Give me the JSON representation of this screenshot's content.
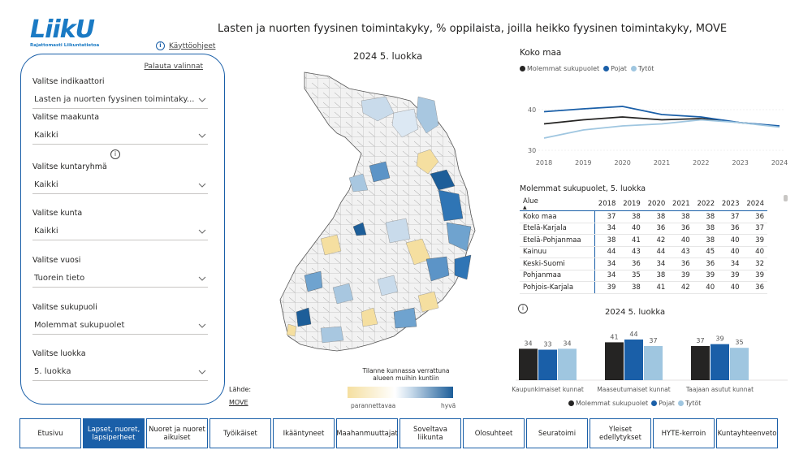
{
  "brand": {
    "logo_text": "LiikU",
    "logo_subtitle": "Rajattomasti Liikuntatietoa",
    "color": "#1a7ac4"
  },
  "page_title": "Lasten ja nuorten fyysinen toimintakyky, % oppilaista, joilla heikko fyysinen toimintakyky, MOVE",
  "help_link": "Käyttöohjeet",
  "filters": {
    "reset_label": "Palauta valinnat",
    "items": [
      {
        "label": "Valitse indikaattori",
        "value": "Lasten ja nuorten fyysinen toimintaky..."
      },
      {
        "label": "Valitse maakunta",
        "value": "Kaikki"
      },
      {
        "label": "Valitse kuntaryhmä",
        "value": "Kaikki"
      },
      {
        "label": "Valitse kunta",
        "value": "Kaikki"
      },
      {
        "label": "Valitse vuosi",
        "value": "Tuorein tieto"
      },
      {
        "label": "Valitse sukupuoli",
        "value": "Molemmat sukupuolet"
      },
      {
        "label": "Valitse luokka",
        "value": "5. luokka"
      }
    ]
  },
  "map": {
    "title": "2024 5. luokka",
    "legend_title": "Tilanne kunnassa verrattuna alueen muihin kuntiin",
    "legend_left": "parannettavaa",
    "legend_right": "hyvä",
    "source_label": "Lähde:",
    "source_link": "MOVE"
  },
  "line_chart": {
    "title": "Koko maa",
    "legend": [
      {
        "name": "Molemmat sukupuolet",
        "color": "#252423"
      },
      {
        "name": "Pojat",
        "color": "#1a5fa8"
      },
      {
        "name": "Tytöt",
        "color": "#9fc6e0"
      }
    ]
  },
  "table": {
    "title": "Molemmat sukupuolet, 5. luokka",
    "columns": [
      "Alue",
      "2018",
      "2019",
      "2020",
      "2021",
      "2022",
      "2023",
      "2024"
    ],
    "rows": [
      [
        "Koko maa",
        "37",
        "38",
        "38",
        "38",
        "38",
        "37",
        "36"
      ],
      [
        "Etelä-Karjala",
        "34",
        "40",
        "36",
        "36",
        "38",
        "36",
        "37"
      ],
      [
        "Etelä-Pohjanmaa",
        "38",
        "41",
        "42",
        "40",
        "38",
        "40",
        "39"
      ],
      [
        "Kainuu",
        "44",
        "43",
        "44",
        "43",
        "45",
        "40",
        "40"
      ],
      [
        "Keski-Suomi",
        "34",
        "36",
        "34",
        "36",
        "36",
        "34",
        "32"
      ],
      [
        "Pohjanmaa",
        "34",
        "35",
        "38",
        "39",
        "39",
        "39",
        "39"
      ],
      [
        "Pohjois-Karjala",
        "39",
        "38",
        "41",
        "42",
        "40",
        "40",
        "36"
      ]
    ]
  },
  "bar_chart": {
    "title": "2024 5. luokka",
    "legend": [
      {
        "name": "Molemmat sukupuolet",
        "color": "#252423"
      },
      {
        "name": "Pojat",
        "color": "#1a5fa8"
      },
      {
        "name": "Tytöt",
        "color": "#9fc6e0"
      }
    ]
  },
  "nav": [
    {
      "label": "Etusivu",
      "active": false
    },
    {
      "label": "Lapset, nuoret, lapsiperheet",
      "active": true
    },
    {
      "label": "Nuoret ja nuoret aikuiset",
      "active": false
    },
    {
      "label": "Työikäiset",
      "active": false
    },
    {
      "label": "Ikääntyneet",
      "active": false
    },
    {
      "label": "Maahanmuuttajat",
      "active": false
    },
    {
      "label": "Soveltava liikunta",
      "active": false
    },
    {
      "label": "Olosuhteet",
      "active": false
    },
    {
      "label": "Seuratoimi",
      "active": false
    },
    {
      "label": "Yleiset edellytykset",
      "active": false
    },
    {
      "label": "HYTE-kerroin",
      "active": false
    },
    {
      "label": "Kuntayhteenveto",
      "active": false
    }
  ],
  "chart_data": [
    {
      "type": "line",
      "title": "Koko maa",
      "x": [
        "2018",
        "2019",
        "2020",
        "2021",
        "2022",
        "2023",
        "2024"
      ],
      "series": [
        {
          "name": "Molemmat sukupuolet",
          "values": [
            36.5,
            37.5,
            38.2,
            37.5,
            37.8,
            36.8,
            35.9
          ]
        },
        {
          "name": "Pojat",
          "values": [
            39.5,
            40.2,
            40.8,
            38.8,
            38.2,
            36.8,
            36.0
          ]
        },
        {
          "name": "Tytöt",
          "values": [
            33.0,
            35.0,
            36.0,
            36.5,
            37.5,
            36.8,
            35.7
          ]
        }
      ],
      "yticks": [
        "30",
        "40"
      ],
      "ylim": [
        29,
        46
      ]
    },
    {
      "type": "bar",
      "title": "2024 5. luokka",
      "categories": [
        "Kaupunkimaiset kunnat",
        "Maaseutumaiset kunnat",
        "Taajaan asutut kunnat"
      ],
      "series": [
        {
          "name": "Molemmat sukupuolet",
          "values": [
            34,
            41,
            37
          ]
        },
        {
          "name": "Pojat",
          "values": [
            33,
            44,
            39
          ]
        },
        {
          "name": "Tytöt",
          "values": [
            34,
            37,
            35
          ]
        }
      ],
      "ylim": [
        0,
        44
      ]
    }
  ]
}
